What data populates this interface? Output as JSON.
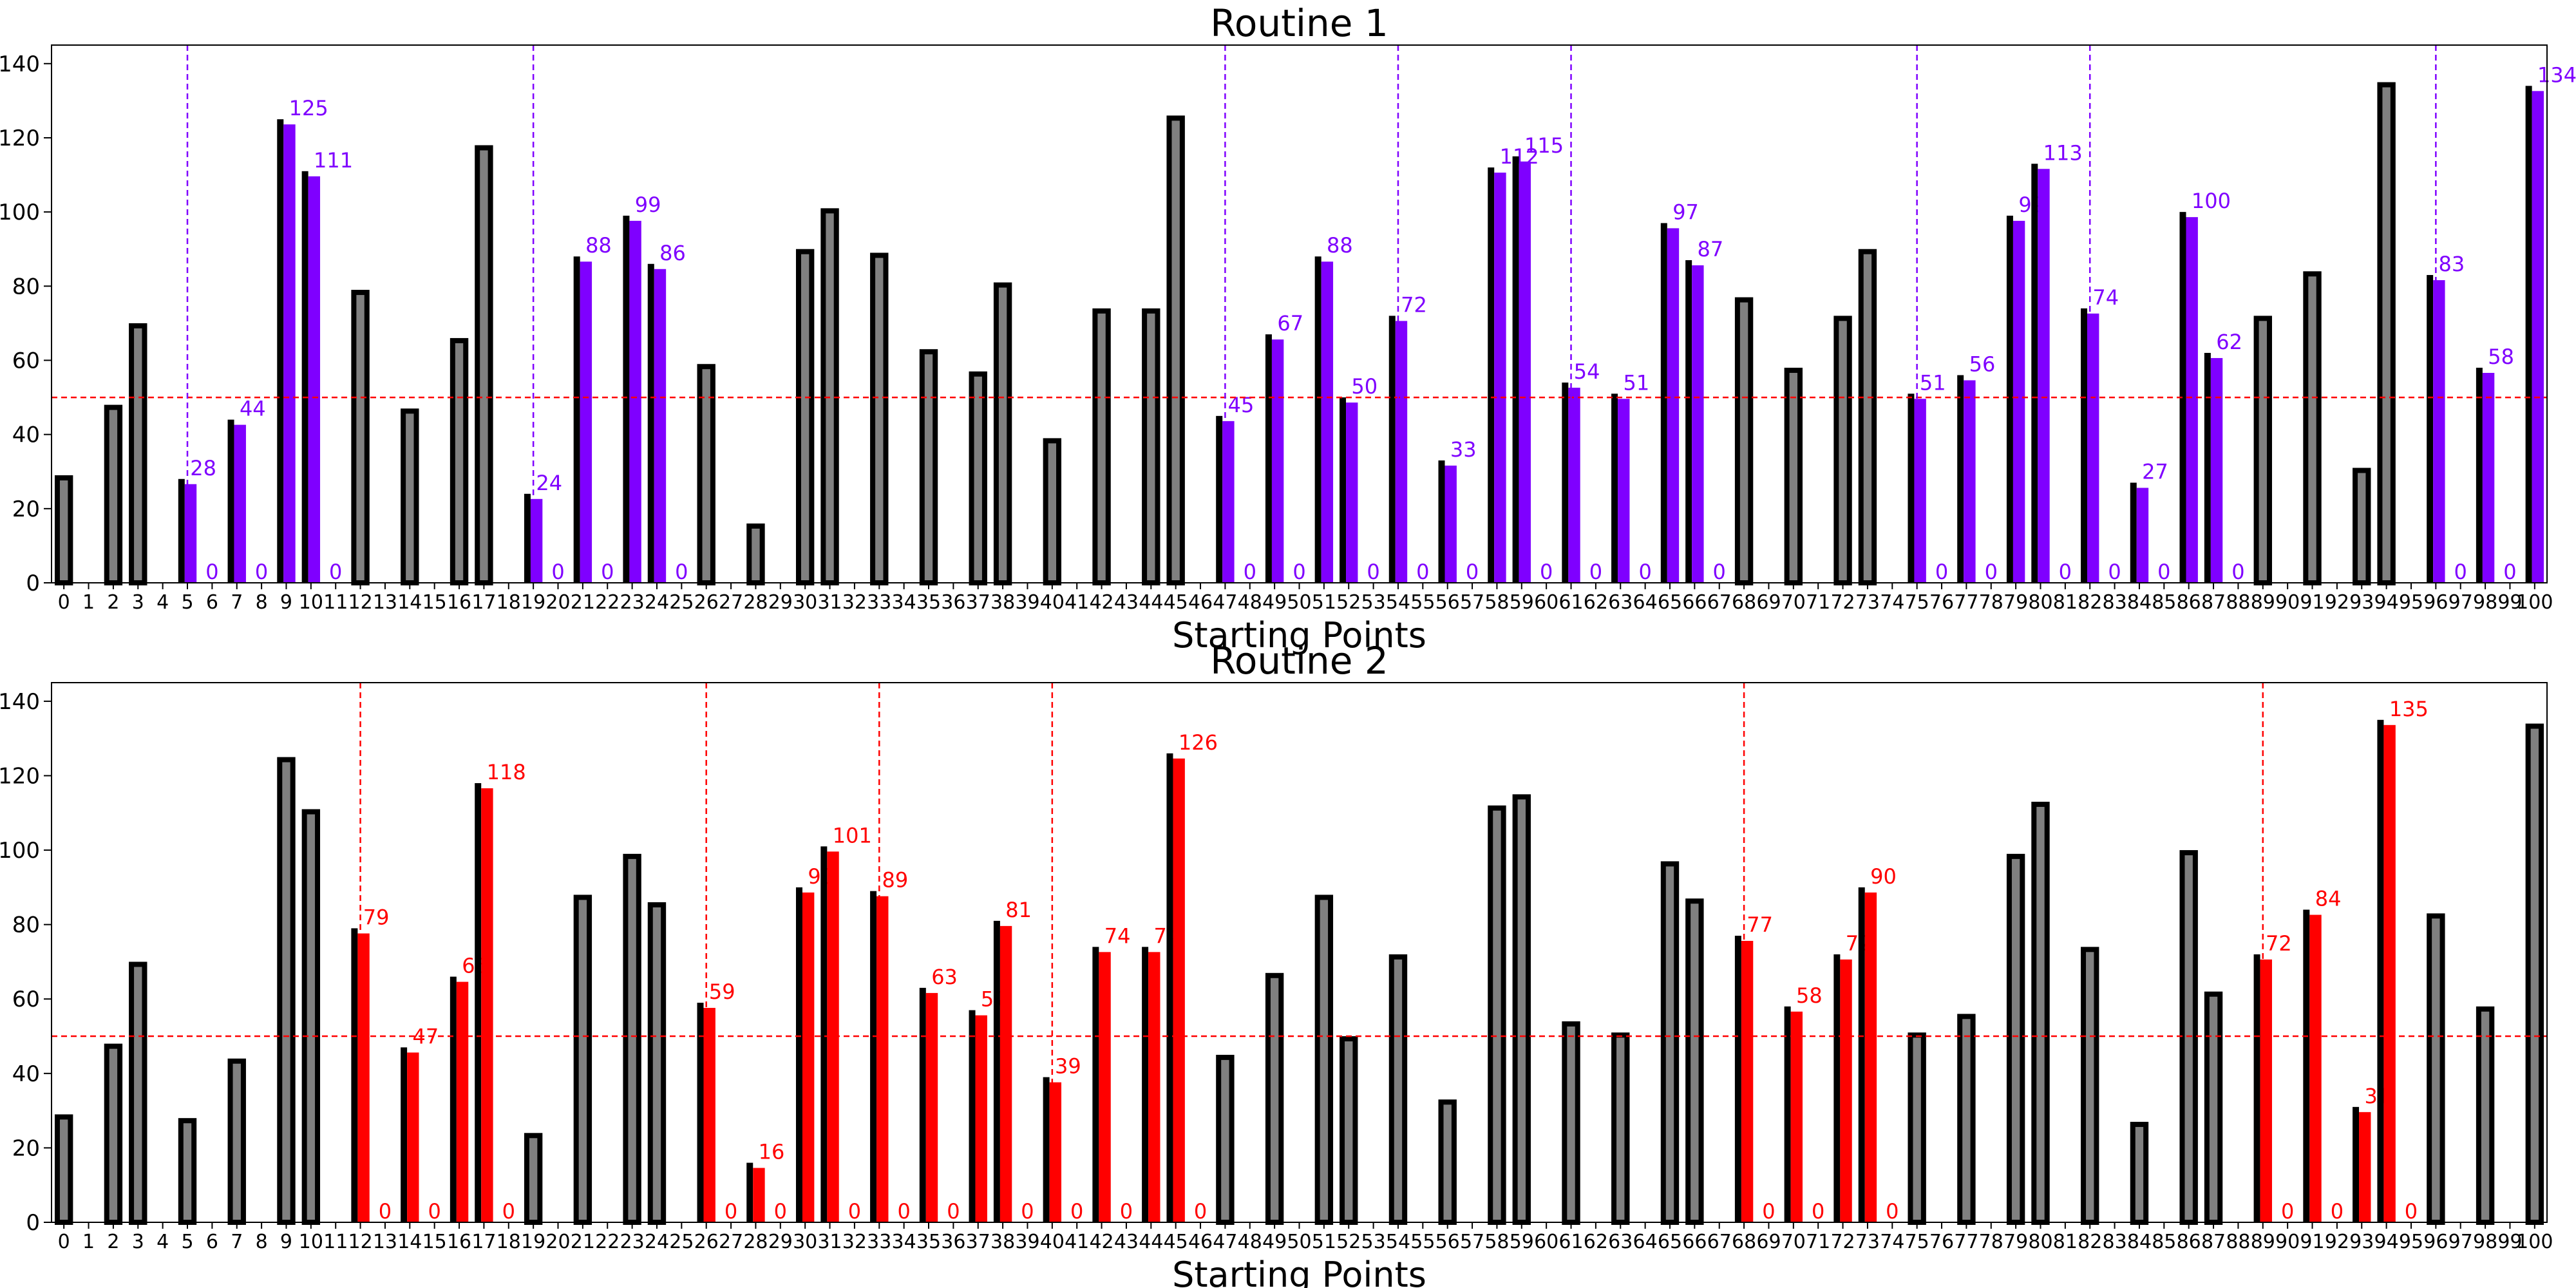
{
  "chart_data": [
    {
      "type": "bar",
      "title": "Routine 1",
      "xlabel": "Starting Points",
      "ylabel": "",
      "categories": [
        0,
        1,
        2,
        3,
        4,
        5,
        6,
        7,
        8,
        9,
        10,
        11,
        12,
        13,
        14,
        15,
        16,
        17,
        18,
        19,
        20,
        21,
        22,
        23,
        24,
        25,
        26,
        27,
        28,
        29,
        30,
        31,
        32,
        33,
        34,
        35,
        36,
        37,
        38,
        39,
        40,
        41,
        42,
        43,
        44,
        45,
        46,
        47,
        48,
        49,
        50,
        51,
        52,
        53,
        54,
        55,
        56,
        57,
        58,
        59,
        60,
        61,
        62,
        63,
        64,
        65,
        66,
        67,
        68,
        69,
        70,
        71,
        72,
        73,
        74,
        75,
        76,
        77,
        78,
        79,
        80,
        81,
        82,
        83,
        84,
        85,
        86,
        87,
        88,
        89,
        90,
        91,
        92,
        93,
        94,
        95,
        96,
        97,
        98,
        99,
        100
      ],
      "values": [
        29,
        0,
        48,
        70,
        0,
        28,
        0,
        44,
        0,
        125,
        111,
        0,
        79,
        0,
        47,
        0,
        66,
        118,
        0,
        24,
        0,
        88,
        0,
        99,
        86,
        0,
        59,
        0,
        16,
        0,
        90,
        101,
        0,
        89,
        0,
        63,
        0,
        57,
        81,
        0,
        39,
        0,
        74,
        0,
        74,
        126,
        0,
        45,
        0,
        67,
        0,
        88,
        50,
        0,
        72,
        0,
        33,
        0,
        112,
        115,
        0,
        54,
        0,
        51,
        0,
        97,
        87,
        0,
        77,
        0,
        58,
        0,
        72,
        90,
        0,
        51,
        0,
        56,
        0,
        99,
        113,
        0,
        74,
        0,
        27,
        0,
        100,
        62,
        0,
        72,
        0,
        84,
        0,
        31,
        135,
        0,
        83,
        0,
        58,
        0,
        134
      ],
      "highlighted": [
        5,
        6,
        7,
        8,
        9,
        10,
        11,
        19,
        20,
        21,
        22,
        23,
        24,
        25,
        47,
        48,
        49,
        50,
        51,
        52,
        53,
        54,
        55,
        56,
        57,
        58,
        59,
        60,
        61,
        62,
        63,
        64,
        65,
        66,
        67,
        75,
        76,
        77,
        78,
        79,
        80,
        81,
        82,
        83,
        84,
        85,
        86,
        87,
        88,
        96,
        97,
        98,
        99,
        100
      ],
      "dividers": [
        5,
        19,
        47,
        54,
        61,
        75,
        82,
        96
      ],
      "threshold": 50,
      "ylim": [
        0,
        145
      ],
      "yticks": [
        0,
        20,
        40,
        60,
        80,
        100,
        120,
        140
      ],
      "colors": {
        "highlight": "#7f00ff",
        "base": "#808080",
        "edge": "#000000",
        "threshold": "#ff0000",
        "divider": "#7f00ff"
      }
    },
    {
      "type": "bar",
      "title": "Routine 2",
      "xlabel": "Starting Points",
      "ylabel": "",
      "categories": [
        0,
        1,
        2,
        3,
        4,
        5,
        6,
        7,
        8,
        9,
        10,
        11,
        12,
        13,
        14,
        15,
        16,
        17,
        18,
        19,
        20,
        21,
        22,
        23,
        24,
        25,
        26,
        27,
        28,
        29,
        30,
        31,
        32,
        33,
        34,
        35,
        36,
        37,
        38,
        39,
        40,
        41,
        42,
        43,
        44,
        45,
        46,
        47,
        48,
        49,
        50,
        51,
        52,
        53,
        54,
        55,
        56,
        57,
        58,
        59,
        60,
        61,
        62,
        63,
        64,
        65,
        66,
        67,
        68,
        69,
        70,
        71,
        72,
        73,
        74,
        75,
        76,
        77,
        78,
        79,
        80,
        81,
        82,
        83,
        84,
        85,
        86,
        87,
        88,
        89,
        90,
        91,
        92,
        93,
        94,
        95,
        96,
        97,
        98,
        99,
        100
      ],
      "values": [
        29,
        0,
        48,
        70,
        0,
        28,
        0,
        44,
        0,
        125,
        111,
        0,
        79,
        0,
        47,
        0,
        66,
        118,
        0,
        24,
        0,
        88,
        0,
        99,
        86,
        0,
        59,
        0,
        16,
        0,
        90,
        101,
        0,
        89,
        0,
        63,
        0,
        57,
        81,
        0,
        39,
        0,
        74,
        0,
        74,
        126,
        0,
        45,
        0,
        67,
        0,
        88,
        50,
        0,
        72,
        0,
        33,
        0,
        112,
        115,
        0,
        54,
        0,
        51,
        0,
        97,
        87,
        0,
        77,
        0,
        58,
        0,
        72,
        90,
        0,
        51,
        0,
        56,
        0,
        99,
        113,
        0,
        74,
        0,
        27,
        0,
        100,
        62,
        0,
        72,
        0,
        84,
        0,
        31,
        135,
        0,
        83,
        0,
        58,
        0,
        134
      ],
      "highlighted": [
        12,
        13,
        14,
        15,
        16,
        17,
        18,
        26,
        27,
        28,
        29,
        30,
        31,
        32,
        33,
        34,
        35,
        36,
        37,
        38,
        39,
        40,
        41,
        42,
        43,
        44,
        45,
        46,
        68,
        69,
        70,
        71,
        72,
        73,
        74,
        89,
        90,
        91,
        92,
        93,
        94,
        95
      ],
      "dividers": [
        12,
        26,
        33,
        40,
        68,
        89
      ],
      "threshold": 50,
      "ylim": [
        0,
        145
      ],
      "yticks": [
        0,
        20,
        40,
        60,
        80,
        100,
        120,
        140
      ],
      "colors": {
        "highlight": "#ff0000",
        "base": "#808080",
        "edge": "#000000",
        "threshold": "#ff0000",
        "divider": "#ff0000"
      }
    }
  ]
}
